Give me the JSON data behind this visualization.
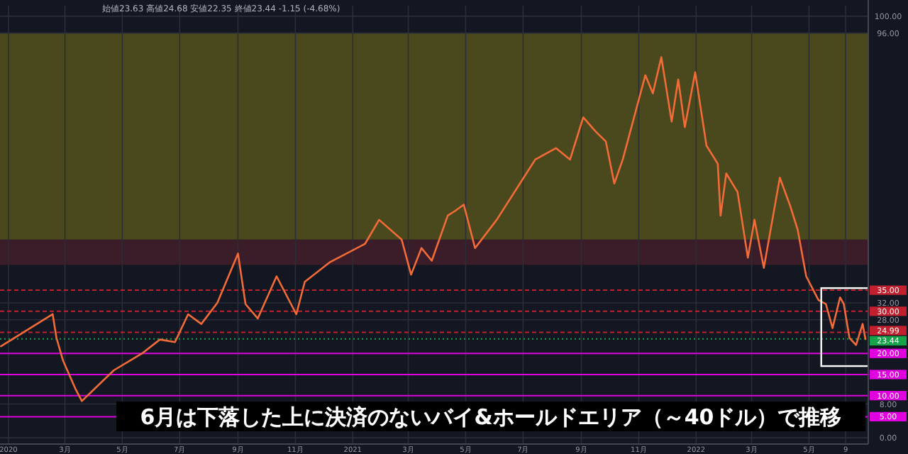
{
  "chart_data": {
    "type": "line",
    "title": "6月は下落した上に決済のないバイ&ホールドエリア（～40ドル）で推移",
    "annotations": [
      "始値23.63 高値24.68 安値22.35 終値23.44 -1.15 (-4.68%)"
    ],
    "x": [
      "2019-12-24",
      "2020-02-17",
      "2020-02-21",
      "2020-02-28",
      "2020-03-12",
      "2020-03-19",
      "2020-04-02",
      "2020-04-22",
      "2020-05-22",
      "2020-06-10",
      "2020-06-26",
      "2020-07-10",
      "2020-07-24",
      "2020-08-10",
      "2020-09-01",
      "2020-09-09",
      "2020-09-22",
      "2020-10-12",
      "2020-11-02",
      "2020-11-11",
      "2020-12-08",
      "2021-01-14",
      "2021-01-29",
      "2021-02-22",
      "2021-03-04",
      "2021-03-15",
      "2021-03-26",
      "2021-04-12",
      "2021-04-19",
      "2021-04-29",
      "2021-05-11",
      "2021-06-03",
      "2021-07-14",
      "2021-08-05",
      "2021-08-20",
      "2021-09-03",
      "2021-09-16",
      "2021-09-27",
      "2021-10-06",
      "2021-10-15",
      "2021-11-08",
      "2021-11-16",
      "2021-11-25",
      "2021-12-06",
      "2021-12-13",
      "2021-12-20",
      "2021-12-31",
      "2022-01-12",
      "2022-01-24",
      "2022-01-27",
      "2022-02-02",
      "2022-02-14",
      "2022-02-25",
      "2022-03-04",
      "2022-03-14",
      "2022-03-31",
      "2022-04-11",
      "2022-04-19",
      "2022-04-28",
      "2022-05-11",
      "2022-05-19",
      "2022-05-26",
      "2022-06-03",
      "2022-06-07",
      "2022-06-13",
      "2022-06-20",
      "2022-06-27",
      "2022-06-30"
    ],
    "series": [
      {
        "color": "#f26b38",
        "values": [
          21.7,
          29.3,
          23.7,
          18.3,
          11.7,
          8.7,
          11.7,
          16,
          20,
          23.3,
          22.7,
          29.3,
          27,
          32,
          43.7,
          31.7,
          28.3,
          38.3,
          29.3,
          37,
          41.7,
          46,
          51.7,
          47,
          38.7,
          45,
          42,
          52.7,
          53.7,
          55.3,
          45,
          51.7,
          66,
          68.7,
          66,
          76,
          72.7,
          70.3,
          60.3,
          66,
          86,
          81.7,
          90.3,
          75,
          85,
          73.7,
          86.7,
          69.3,
          65,
          52.7,
          62.7,
          58.3,
          42.7,
          51.7,
          40.3,
          61.7,
          55,
          49.3,
          38.3,
          32.7,
          31.7,
          26,
          33.3,
          31.7,
          23.7,
          22,
          27,
          23.4
        ]
      }
    ],
    "xlim": [
      "2019-12-23",
      "2022-07-03"
    ],
    "xticks": [
      {
        "value": "2020-01-01",
        "label": "2020"
      },
      {
        "value": "2020-03-01",
        "label": "3月"
      },
      {
        "value": "2020-05-01",
        "label": "5月"
      },
      {
        "value": "2020-07-01",
        "label": "7月"
      },
      {
        "value": "2020-09-01",
        "label": "9月"
      },
      {
        "value": "2020-11-01",
        "label": "11月"
      },
      {
        "value": "2021-01-01",
        "label": "2021"
      },
      {
        "value": "2021-03-01",
        "label": "3月"
      },
      {
        "value": "2021-05-01",
        "label": "5月"
      },
      {
        "value": "2021-07-01",
        "label": "7月"
      },
      {
        "value": "2021-09-01",
        "label": "9月"
      },
      {
        "value": "2021-11-01",
        "label": "11月"
      },
      {
        "value": "2022-01-01",
        "label": "2022"
      },
      {
        "value": "2022-03-01",
        "label": "3月"
      },
      {
        "value": "2022-05-01",
        "label": "5月"
      },
      {
        "value": "2022-06-09",
        "label": "9"
      }
    ],
    "ylim": [
      -1.5,
      102.5
    ],
    "yticks": [
      {
        "value": 0,
        "label": "0.00"
      },
      {
        "value": 8,
        "label": "8.00"
      },
      {
        "value": 28,
        "label": "28.00"
      },
      {
        "value": 32,
        "label": "32.00"
      },
      {
        "value": 96,
        "label": "96.00"
      },
      {
        "value": 100,
        "label": "100.00"
      }
    ],
    "ref_lines": [
      {
        "axis": "y",
        "value": 35,
        "label": "35.00",
        "color": "#c2202f",
        "line_style": "dashed"
      },
      {
        "axis": "y",
        "value": 30,
        "label": "30.00",
        "color": "#c2202f",
        "line_style": "dashed"
      },
      {
        "axis": "y",
        "value": 24.99,
        "label": "24.99",
        "color": "#c2202f",
        "line_style": "dashed"
      },
      {
        "axis": "y",
        "value": 23.44,
        "label": "23.44",
        "color": "#16a34a",
        "line_style": "dotted"
      },
      {
        "axis": "y",
        "value": 20,
        "label": "20.00",
        "color": "#e000e0",
        "line_style": "solid"
      },
      {
        "axis": "y",
        "value": 15,
        "label": "15.00",
        "color": "#e000e0",
        "line_style": "solid"
      },
      {
        "axis": "y",
        "value": 10,
        "label": "10.00",
        "color": "#e000e0",
        "line_style": "solid"
      },
      {
        "axis": "y",
        "value": 5,
        "label": "5.00",
        "color": "#e000e0",
        "line_style": "solid"
      }
    ],
    "bands": [
      {
        "axis": "y",
        "from": 47,
        "to": 96,
        "color": "#5e5b1c"
      },
      {
        "axis": "y",
        "from": 41,
        "to": 47,
        "color": "#4a1f2c"
      }
    ],
    "grid": true
  }
}
